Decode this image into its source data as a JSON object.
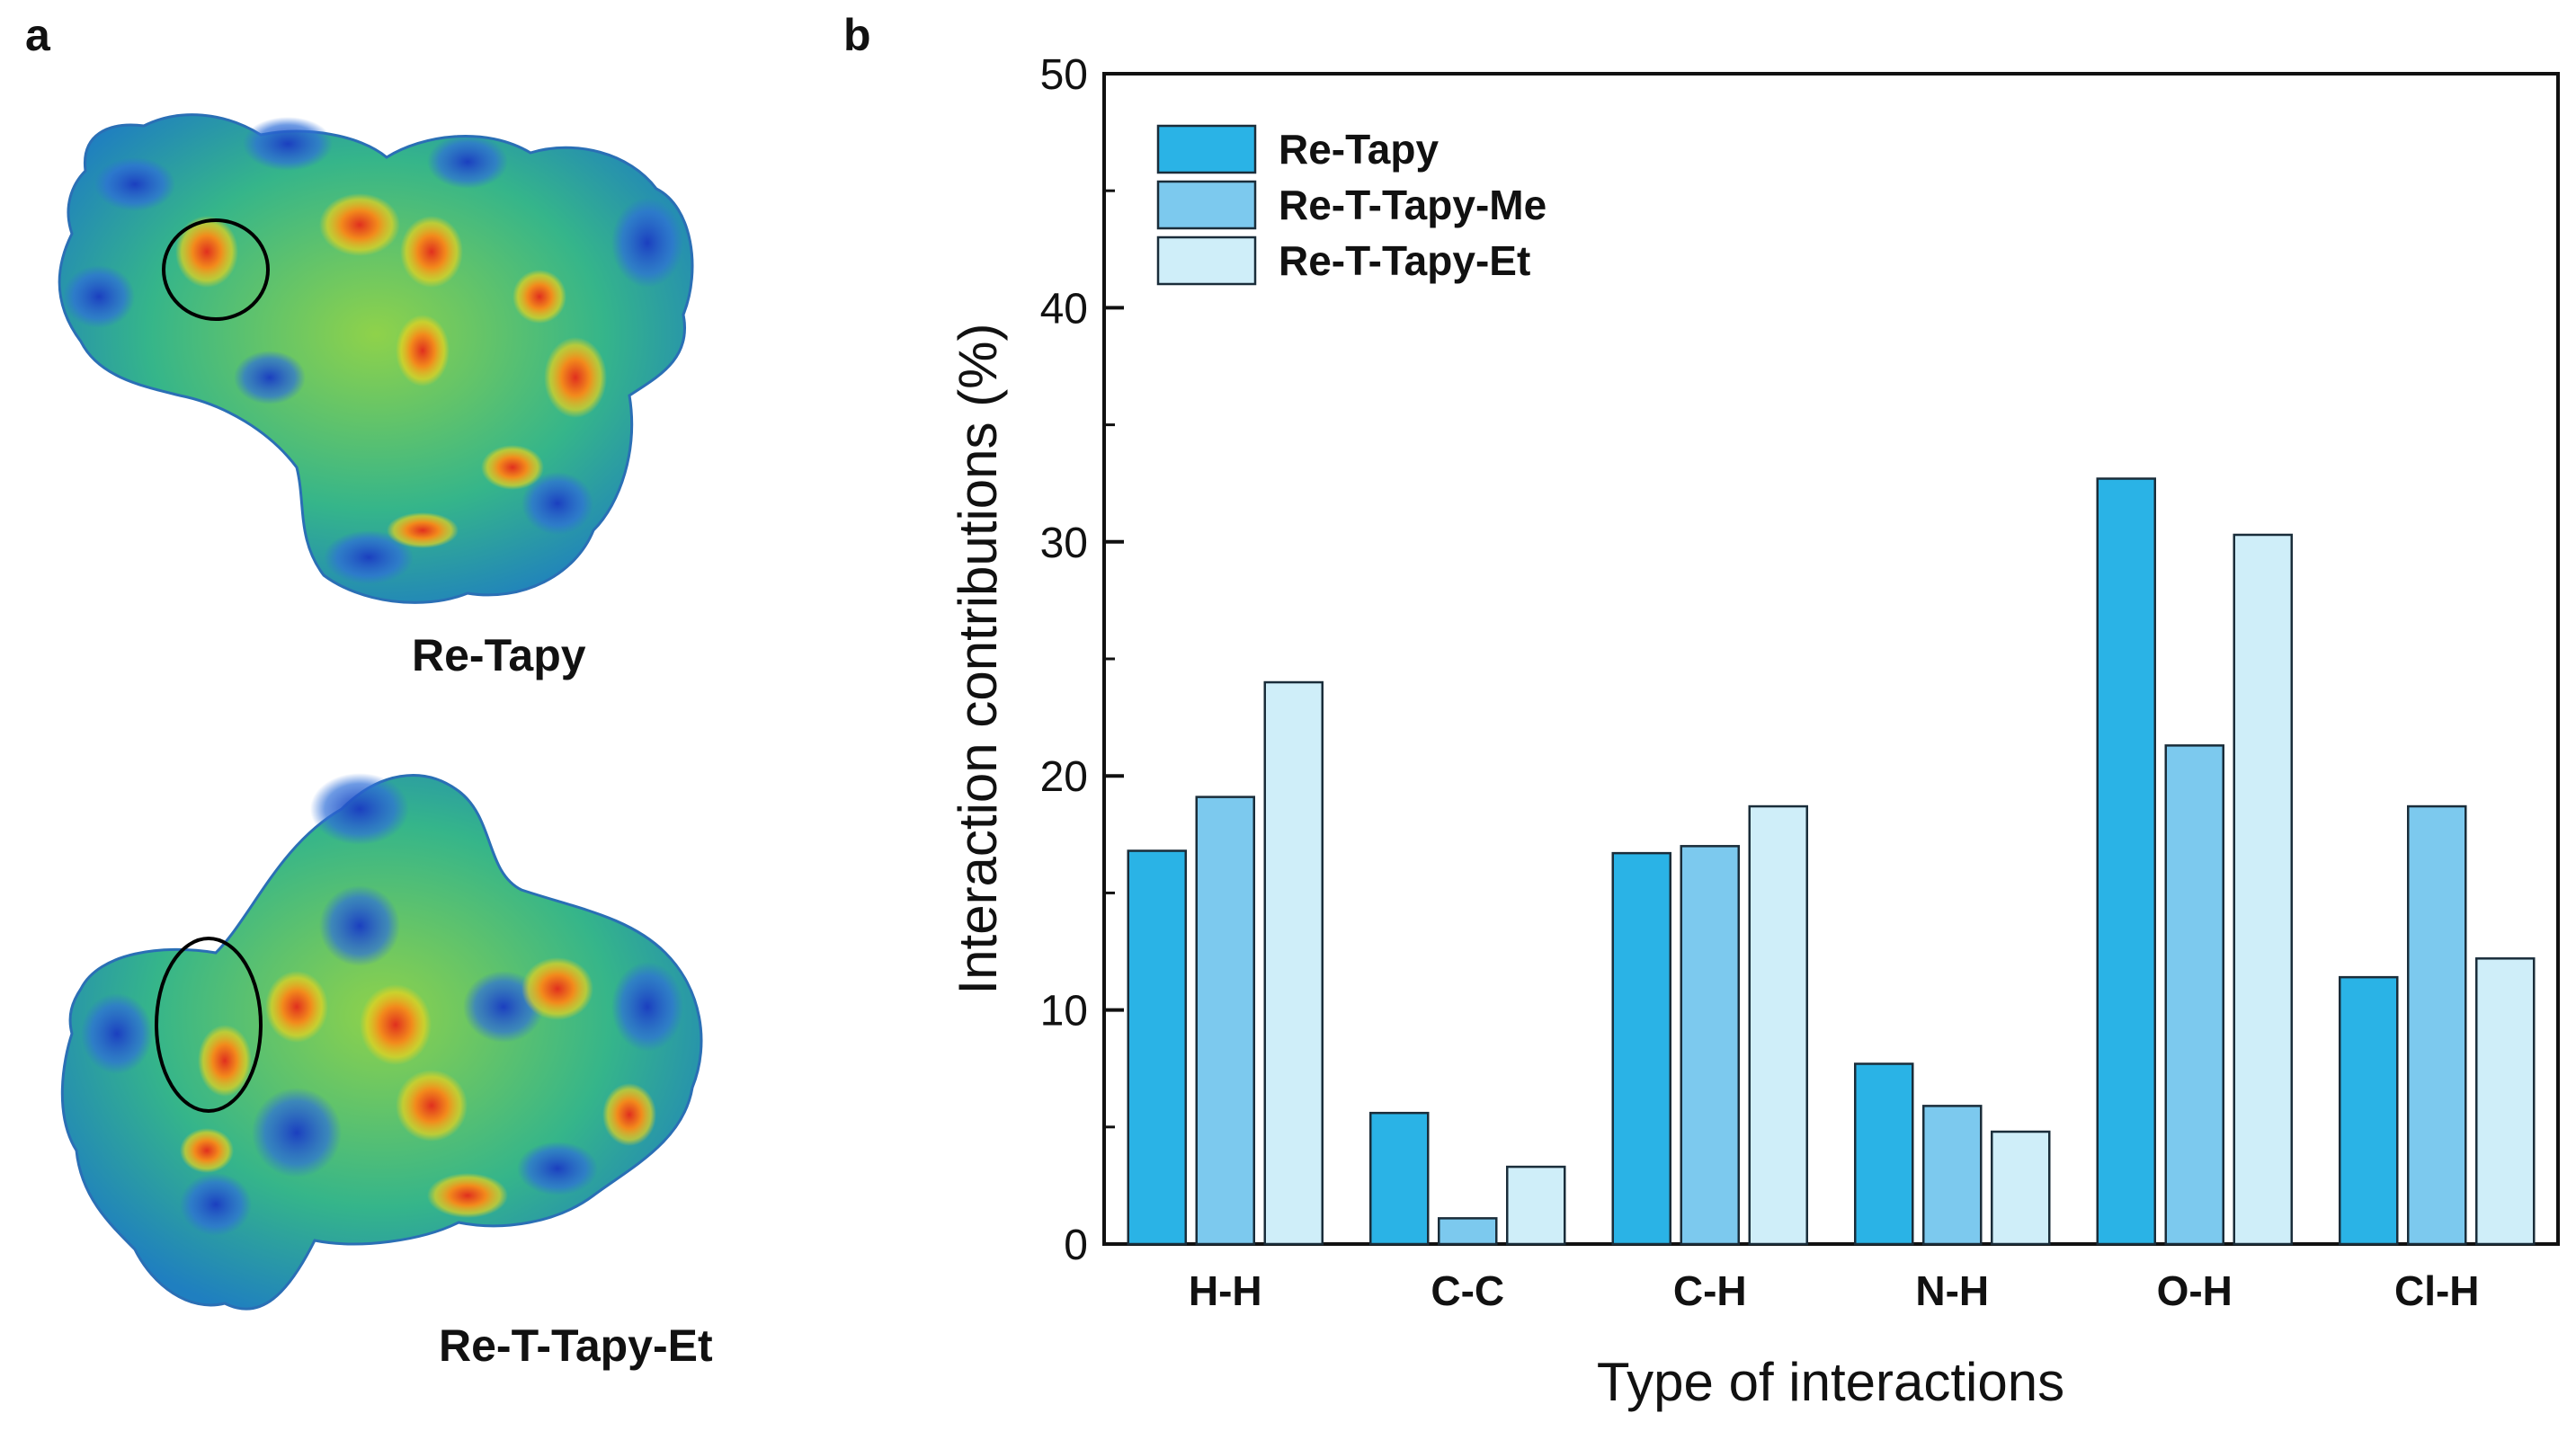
{
  "panel_a": {
    "letter": "a",
    "molecules": [
      {
        "label": "Re-Tapy"
      },
      {
        "label": "Re-T-Tapy-Et"
      }
    ]
  },
  "panel_b": {
    "letter": "b"
  },
  "colors": {
    "Re-Tapy": "#2ab3e6",
    "Re-T-Tapy-Me": "#7cc9ee",
    "Re-T-Tapy-Et": "#cfeef9",
    "bar_edge": "#1a2d3a"
  },
  "chart_data": {
    "type": "bar",
    "categories": [
      "H-H",
      "C-C",
      "C-H",
      "N-H",
      "O-H",
      "Cl-H"
    ],
    "series": [
      {
        "name": "Re-Tapy",
        "values": [
          16.8,
          5.6,
          16.7,
          7.7,
          32.7,
          11.4
        ]
      },
      {
        "name": "Re-T-Tapy-Me",
        "values": [
          19.1,
          1.1,
          17.0,
          5.9,
          21.3,
          18.7
        ]
      },
      {
        "name": "Re-T-Tapy-Et",
        "values": [
          24.0,
          3.3,
          18.7,
          4.8,
          30.3,
          12.2
        ]
      }
    ],
    "xlabel": "Type of interactions",
    "ylabel": "Interaction contributions (%)",
    "ylim": [
      0,
      50
    ],
    "yticks": [
      0,
      10,
      20,
      30,
      40,
      50
    ],
    "legend_position": "top-left",
    "grid": false
  }
}
